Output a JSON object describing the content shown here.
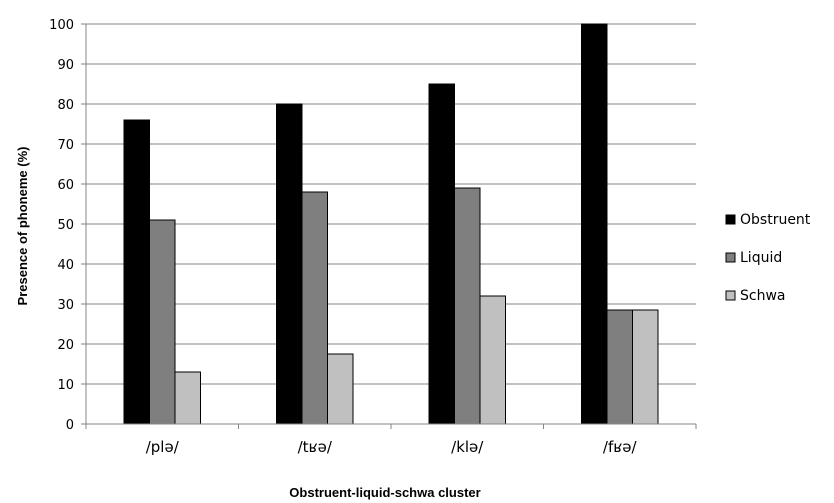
{
  "chart_data": {
    "type": "bar",
    "categories": [
      "/plə/",
      "/tʁə/",
      "/klə/",
      "/fʁə/"
    ],
    "series": [
      {
        "name": "Obstruent",
        "values": [
          76,
          80,
          85,
          100
        ],
        "color": "#000000"
      },
      {
        "name": "Liquid",
        "values": [
          51,
          58,
          59,
          28.5
        ],
        "color": "#7f7f7f"
      },
      {
        "name": "Schwa",
        "values": [
          13,
          17.5,
          32,
          28.5
        ],
        "color": "#c0c0c0"
      }
    ],
    "title": "",
    "xlabel": "Obstruent-liquid-schwa cluster",
    "ylabel": "Presence of phoneme (%)",
    "ylim": [
      0,
      100
    ],
    "yticks": [
      0,
      10,
      20,
      30,
      40,
      50,
      60,
      70,
      80,
      90,
      100
    ],
    "grid": true,
    "legend_position": "right"
  }
}
